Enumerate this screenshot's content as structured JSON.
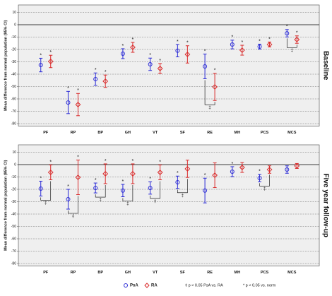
{
  "chart_data": [
    {
      "type": "errorbar",
      "title": "Baseline",
      "y_label": "Mean difference from normal population (95% CI)",
      "categories": [
        "PF",
        "RP",
        "BP",
        "GH",
        "VT",
        "SF",
        "RE",
        "MH",
        "PCS",
        "MCS"
      ],
      "series": [
        {
          "color": "#2b2bd6",
          "marker": "circle",
          "values": [
            -32.6,
            -62.9,
            -44,
            -23.4,
            -32,
            -21,
            -33.7,
            -16,
            -17.7,
            -6.9
          ],
          "errors": [
            5.5,
            9,
            5,
            4,
            5,
            5,
            10,
            3.5,
            2,
            3
          ],
          "labels": [
            "*",
            "*",
            "*",
            "*",
            "*",
            "*",
            "*",
            "*",
            "*",
            "*"
          ]
        },
        {
          "color": "#d92b2b",
          "marker": "diamond",
          "values": [
            -29.7,
            -64.6,
            -45.7,
            -18.3,
            -35.4,
            -24,
            -50.3,
            -20.6,
            -16,
            -12
          ],
          "errors": [
            5,
            9,
            5,
            4,
            4,
            7,
            11,
            4,
            2,
            3
          ],
          "labels": [
            "*",
            "*",
            "*",
            "*",
            "*",
            "*",
            "*",
            "*",
            "*",
            "*"
          ]
        }
      ],
      "sig_labels": [
        null,
        null,
        null,
        null,
        null,
        null,
        "‡",
        null,
        null,
        "‡"
      ],
      "ylim": [
        -82,
        16
      ],
      "yticks": [
        10,
        0,
        -10,
        -20,
        -30,
        -40,
        -50,
        -60,
        -70,
        -80
      ],
      "grid": true
    },
    {
      "type": "errorbar",
      "title": "Five year follow-up",
      "y_label": "Mean difference from normal population (95% CI)",
      "categories": [
        "PF",
        "RP",
        "BP",
        "GH",
        "VT",
        "SF",
        "RE",
        "MH",
        "PCS",
        "MCS"
      ],
      "series": [
        {
          "name": "PsA",
          "color": "#2b2bd6",
          "marker": "circle",
          "values": [
            -19.4,
            -28,
            -18.9,
            -21,
            -18.9,
            -14.3,
            -21,
            -5.7,
            -10.9,
            -4
          ],
          "errors": [
            6,
            8,
            4,
            5,
            5,
            5,
            10,
            4,
            3,
            3
          ],
          "labels": [
            "*",
            "*",
            "*",
            "*",
            "*",
            "*",
            "*",
            "*",
            "*",
            null
          ]
        },
        {
          "name": "RA",
          "color": "#d92b2b",
          "marker": "diamond",
          "values": [
            -6.3,
            -10.3,
            -7.4,
            -7.4,
            -6.3,
            -3.4,
            -8.6,
            -2.3,
            -4,
            -1.1
          ],
          "errors": [
            6,
            14,
            8,
            8,
            6,
            7,
            10,
            4,
            3,
            2
          ],
          "labels": [
            "*",
            "*",
            "*",
            "*",
            "*",
            null,
            null,
            null,
            null,
            null
          ]
        }
      ],
      "sig_labels": [
        "‡",
        "‡",
        "‡",
        "‡",
        "‡",
        "‡",
        null,
        null,
        "‡",
        null
      ],
      "ylim": [
        -82,
        16
      ],
      "yticks": [
        10,
        0,
        -10,
        -20,
        -30,
        -40,
        -50,
        -60,
        -70,
        -80
      ],
      "grid": true,
      "notes": [
        "‡ p < 0.05 PsA vs. RA",
        "* p < 0.05 vs. norm"
      ]
    }
  ]
}
